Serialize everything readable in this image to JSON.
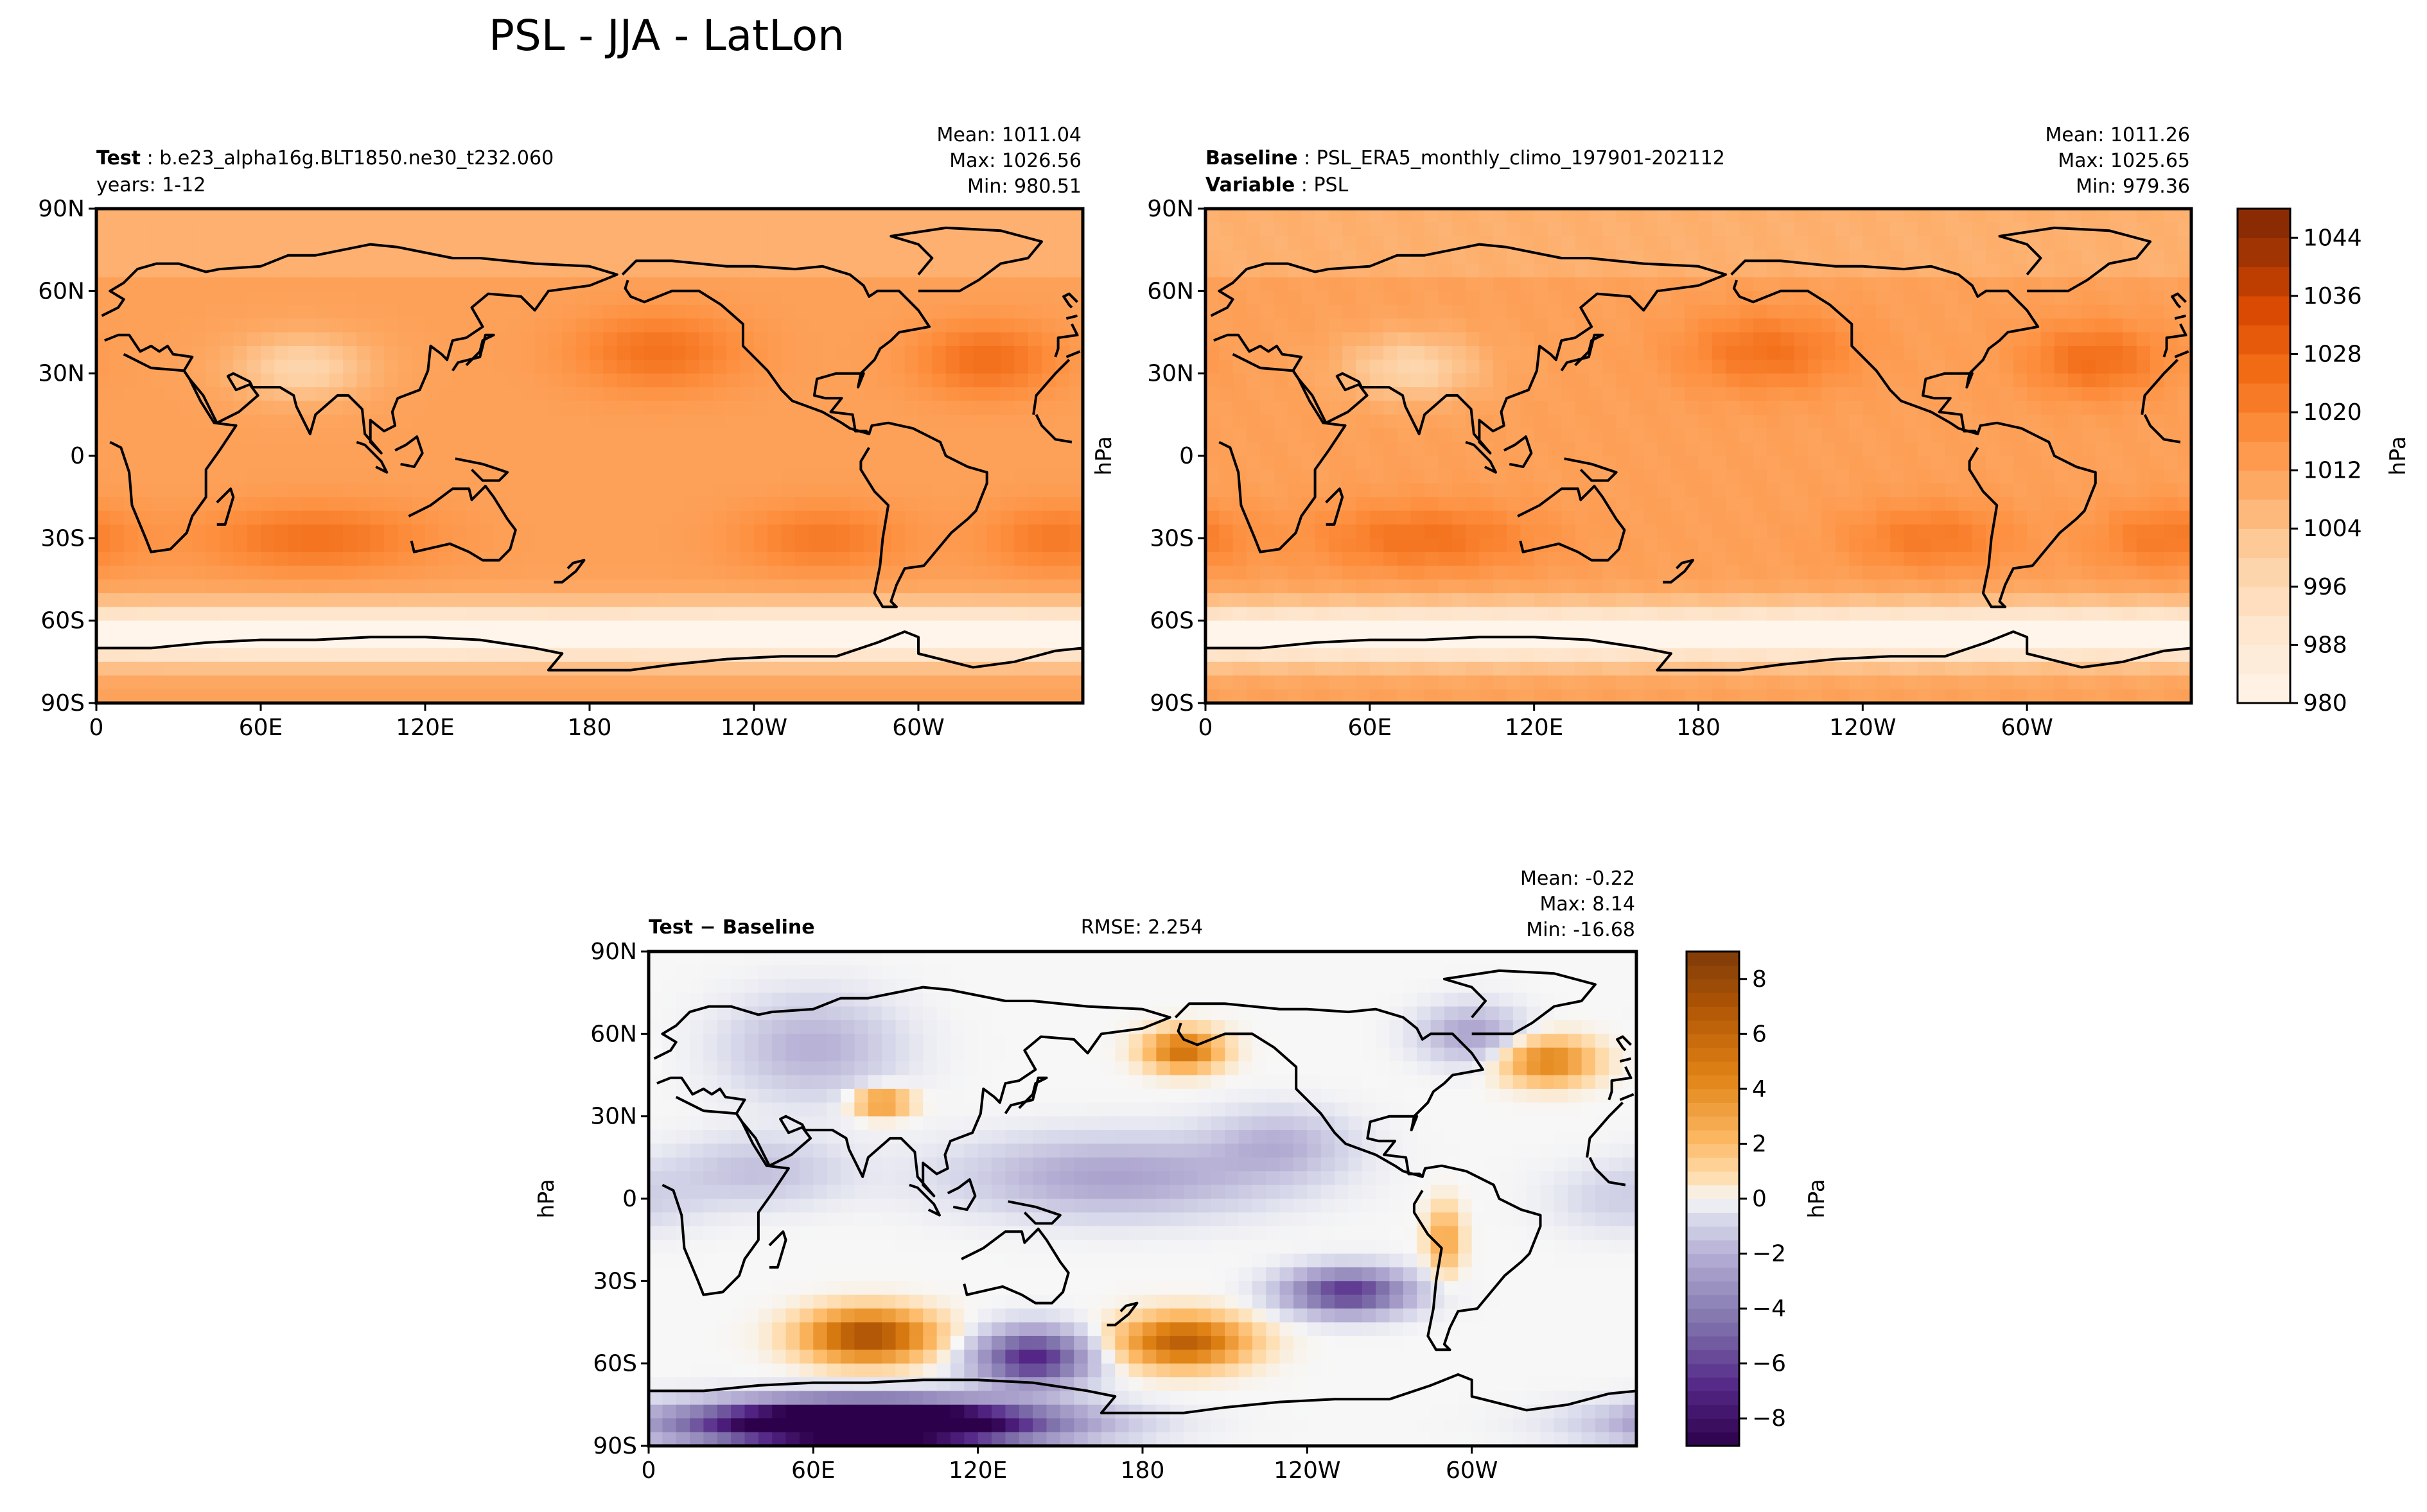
{
  "figure": {
    "title": "PSL - JJA - LatLon"
  },
  "panels": [
    {
      "id": "test",
      "label_bold": "Test",
      "label_text": "b.e23_alpha16g.BLT1850.ne30_t232.060",
      "line2_bold": "",
      "line2_text": "years: 1-12",
      "center_text": "",
      "stats": {
        "mean": "Mean: 1011.04",
        "max": "Max: 1026.56",
        "min": "Min: 980.51"
      },
      "ylabel": ""
    },
    {
      "id": "baseline",
      "label_bold": "Baseline",
      "label_text": "PSL_ERA5_monthly_climo_197901-202112",
      "line2_bold": "Variable",
      "line2_text": "PSL",
      "center_text": "",
      "stats": {
        "mean": "Mean: 1011.26",
        "max": "Max: 1025.65",
        "min": "Min: 979.36"
      },
      "ylabel": "hPa"
    },
    {
      "id": "diff",
      "label_bold": "Test − Baseline",
      "label_text": "",
      "line2_bold": "",
      "line2_text": "",
      "center_text": "RMSE: 2.254",
      "stats": {
        "mean": "Mean: -0.22",
        "max": "Max:  8.14",
        "min": "Min: -16.68"
      },
      "ylabel": "hPa"
    }
  ],
  "axes": {
    "lat_ticks": [
      "90N",
      "60N",
      "30N",
      "0",
      "30S",
      "60S",
      "90S"
    ],
    "lon_ticks": [
      "0",
      "60E",
      "120E",
      "180",
      "120W",
      "60W"
    ]
  },
  "colorbars": {
    "psl": {
      "label": "hPa",
      "ticks": [
        "980",
        "988",
        "996",
        "1004",
        "1012",
        "1020",
        "1028",
        "1036",
        "1044"
      ]
    },
    "diff": {
      "label": "hPa",
      "ticks": [
        "−8",
        "−6",
        "−4",
        "−2",
        "0",
        "2",
        "4",
        "6",
        "8"
      ]
    }
  },
  "chart_data": [
    {
      "type": "heatmap",
      "title": "PSL - JJA - LatLon",
      "panel": "Test: b.e23_alpha16g.BLT1850.ne30_t232.060, years: 1-12",
      "variable": "PSL",
      "units": "hPa",
      "projection": "lat-lon (0 to 360 longitude, 90S to 90N)",
      "colormap": "Oranges",
      "clim": [
        980,
        1048
      ],
      "stats": {
        "mean": 1011.04,
        "max": 1026.56,
        "min": 980.51
      },
      "features": [
        {
          "name": "North Pacific high",
          "lon": 205,
          "lat": 38,
          "value": 1024
        },
        {
          "name": "Azores high",
          "lon": 325,
          "lat": 35,
          "value": 1025
        },
        {
          "name": "South Atlantic high",
          "lon": 350,
          "lat": -30,
          "value": 1022
        },
        {
          "name": "South Pacific high",
          "lon": 265,
          "lat": -30,
          "value": 1022
        },
        {
          "name": "Indian Ocean high",
          "lon": 80,
          "lat": -30,
          "value": 1025
        },
        {
          "name": "Asian low",
          "lon": 75,
          "lat": 32,
          "value": 998
        },
        {
          "name": "Southern Ocean trough",
          "lon": 180,
          "lat": -65,
          "value": 985
        }
      ]
    },
    {
      "type": "heatmap",
      "panel": "Baseline: PSL_ERA5_monthly_climo_197901-202112",
      "variable": "PSL",
      "units": "hPa",
      "colormap": "Oranges",
      "clim": [
        980,
        1048
      ],
      "stats": {
        "mean": 1011.26,
        "max": 1025.65,
        "min": 979.36
      },
      "features": [
        {
          "name": "North Pacific high",
          "lon": 205,
          "lat": 37,
          "value": 1023
        },
        {
          "name": "Azores high",
          "lon": 325,
          "lat": 35,
          "value": 1024
        },
        {
          "name": "South Atlantic high",
          "lon": 350,
          "lat": -30,
          "value": 1021
        },
        {
          "name": "South Pacific high",
          "lon": 265,
          "lat": -30,
          "value": 1021
        },
        {
          "name": "Indian Ocean high",
          "lon": 80,
          "lat": -30,
          "value": 1024
        },
        {
          "name": "Asian low",
          "lon": 75,
          "lat": 32,
          "value": 998
        },
        {
          "name": "Southern Ocean trough",
          "lon": 180,
          "lat": -65,
          "value": 984
        }
      ]
    },
    {
      "type": "heatmap",
      "panel": "Test − Baseline",
      "variable": "PSL difference",
      "units": "hPa",
      "colormap": "PuOr_r",
      "clim": [
        -9,
        9
      ],
      "rmse": 2.254,
      "stats": {
        "mean": -0.22,
        "max": 8.14,
        "min": -16.68
      },
      "features": [
        {
          "name": "positive anomaly",
          "lon": 75,
          "lat": -48,
          "value": 6.5
        },
        {
          "name": "positive anomaly",
          "lon": 195,
          "lat": -52,
          "value": 6
        },
        {
          "name": "positive anomaly",
          "lon": 195,
          "lat": 52,
          "value": 5
        },
        {
          "name": "positive anomaly",
          "lon": 325,
          "lat": 50,
          "value": 4
        },
        {
          "name": "negative anomaly",
          "lon": 140,
          "lat": -58,
          "value": -6
        },
        {
          "name": "negative anomaly",
          "lon": 255,
          "lat": -35,
          "value": -6
        },
        {
          "name": "negative anomaly",
          "lon": 80,
          "lat": -82,
          "value": -12
        },
        {
          "name": "negative anomaly",
          "lon": 160,
          "lat": 10,
          "value": -2
        }
      ]
    }
  ]
}
